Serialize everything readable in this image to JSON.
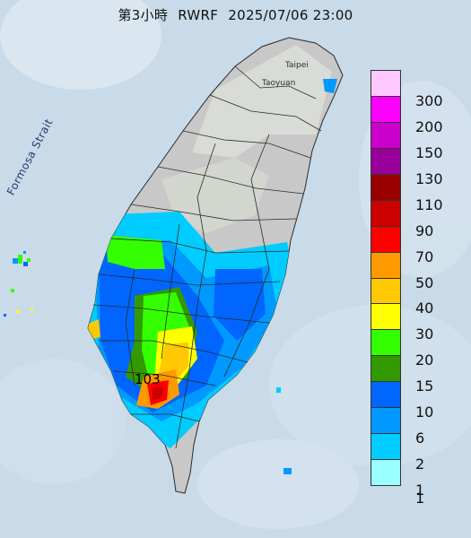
{
  "title": {
    "forecast_step": "第3小時",
    "model": "RWRF",
    "datetime": "2025/07/06 23:00"
  },
  "map": {
    "strait_label": "Formosa Strait",
    "city_labels": [
      "Taipei",
      "Taoyuan"
    ],
    "peak_value": "103"
  },
  "legend": {
    "items": [
      {
        "label": "300",
        "color": "#ffc8ff"
      },
      {
        "label": "200",
        "color": "#ff00ff"
      },
      {
        "label": "150",
        "color": "#cc00cc"
      },
      {
        "label": "130",
        "color": "#990099"
      },
      {
        "label": "110",
        "color": "#990000"
      },
      {
        "label": "90",
        "color": "#cc0000"
      },
      {
        "label": "70",
        "color": "#ff0000"
      },
      {
        "label": "50",
        "color": "#ff9900"
      },
      {
        "label": "40",
        "color": "#ffc800"
      },
      {
        "label": "30",
        "color": "#ffff00"
      },
      {
        "label": "20",
        "color": "#33ff00"
      },
      {
        "label": "15",
        "color": "#339900"
      },
      {
        "label": "10",
        "color": "#0066ff"
      },
      {
        "label": "6",
        "color": "#0099ff"
      },
      {
        "label": "2",
        "color": "#00ccff"
      },
      {
        "label": "1",
        "color": "#99ffff"
      },
      {
        "label": "",
        "color": "#c8c8c8"
      }
    ]
  }
}
